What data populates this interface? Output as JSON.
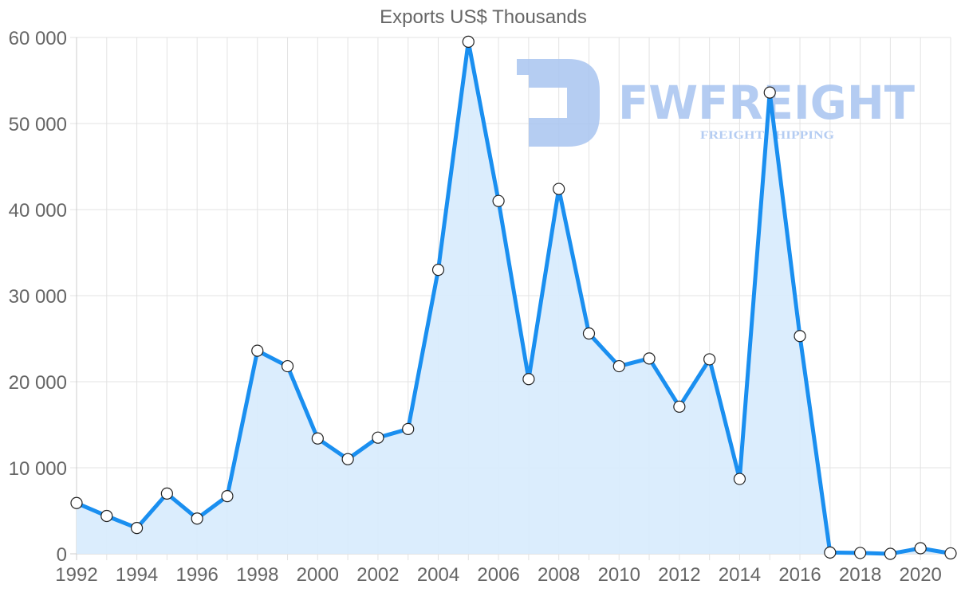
{
  "chart_data": {
    "type": "line",
    "title": "Exports US$ Thousands",
    "xlabel": "",
    "ylabel": "",
    "ylim": [
      0,
      60000
    ],
    "yticks": [
      0,
      10000,
      20000,
      30000,
      40000,
      50000,
      60000
    ],
    "ytick_labels": [
      "0",
      "10 000",
      "20 000",
      "30 000",
      "40 000",
      "50 000",
      "60 000"
    ],
    "xtick_labels": [
      "1992",
      "1994",
      "1996",
      "1998",
      "2000",
      "2002",
      "2004",
      "2006",
      "2008",
      "2010",
      "2012",
      "2014",
      "2016",
      "2018",
      "2020"
    ],
    "grid": true,
    "legend": null,
    "fill": true,
    "x": [
      1992,
      1993,
      1994,
      1995,
      1996,
      1997,
      1998,
      1999,
      2000,
      2001,
      2002,
      2003,
      2004,
      2005,
      2006,
      2007,
      2008,
      2009,
      2010,
      2011,
      2012,
      2013,
      2014,
      2015,
      2016,
      2017,
      2018,
      2019,
      2020,
      2021
    ],
    "series": [
      {
        "name": "Exports US$ Thousands",
        "color": "#1a8ff0",
        "fill_color": "#d9ecfd",
        "values": [
          5900,
          4400,
          3000,
          7000,
          4100,
          6700,
          23600,
          21800,
          13400,
          11000,
          13500,
          14500,
          33000,
          59500,
          41000,
          20300,
          42400,
          25600,
          21800,
          22700,
          17100,
          22600,
          8700,
          53600,
          25300,
          150,
          100,
          0,
          650,
          50
        ]
      }
    ]
  },
  "watermark": {
    "brand": "FWFREIGHT",
    "tagline": "FREIGHT SHIPPING",
    "color": "#a8c4f0"
  }
}
